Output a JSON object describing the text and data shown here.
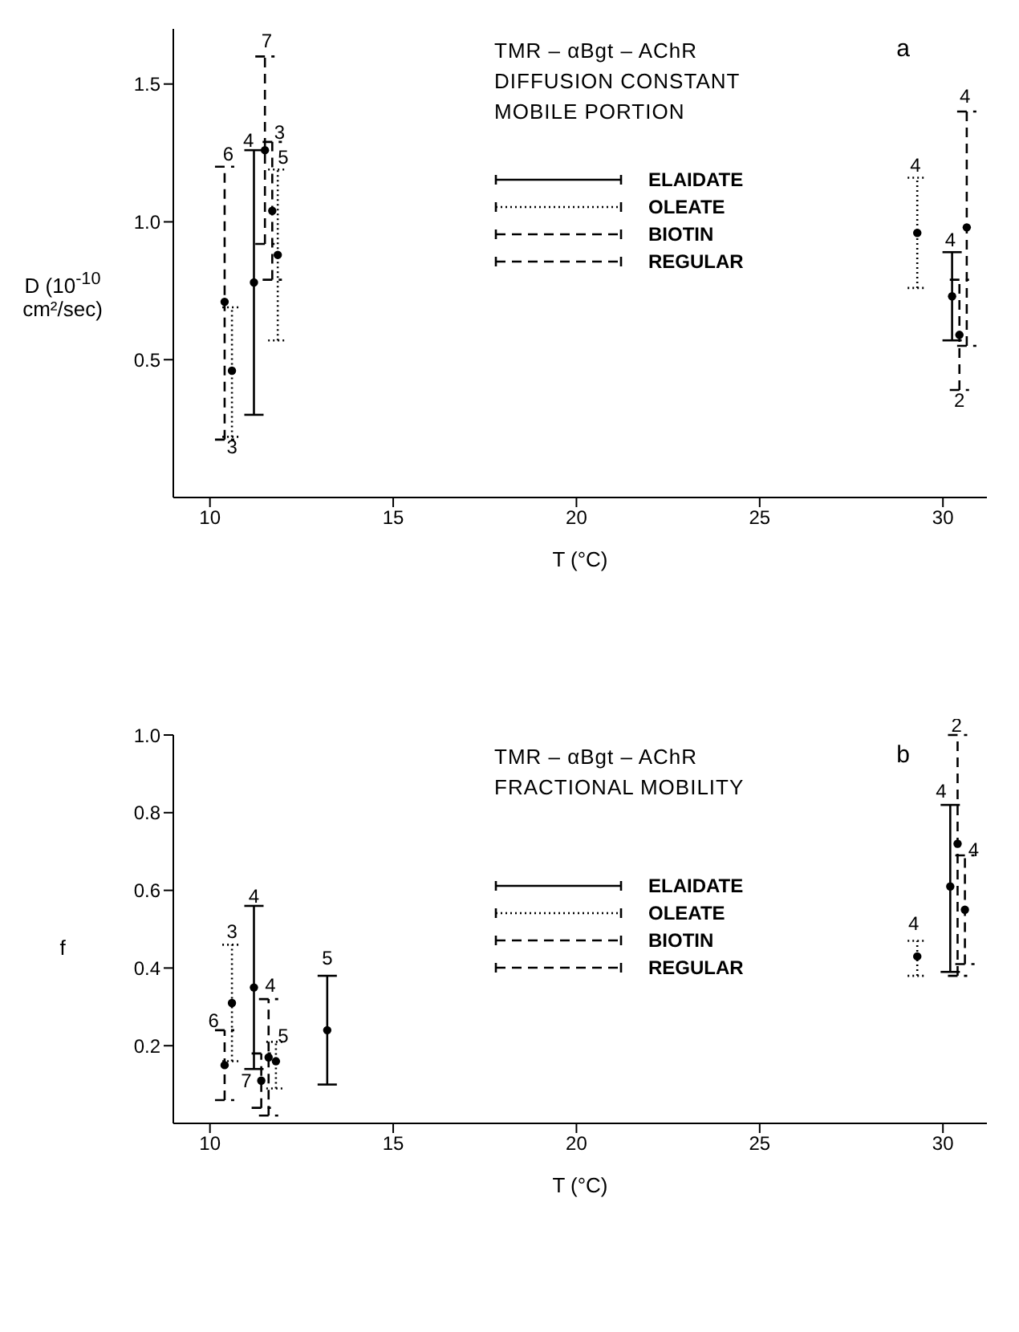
{
  "chart_data": [
    {
      "type": "scatter",
      "title": "TMR – αBgt – AChR",
      "subtitle": "DIFFUSION CONSTANT MOBILE PORTION",
      "xlabel": "T (°C)",
      "ylabel": "D (10$^{-10}$ cm²/sec)",
      "xlim": [
        9,
        31.2
      ],
      "xticks": [
        10,
        15,
        20,
        25,
        30
      ],
      "ylim": [
        0,
        1.7
      ],
      "yticks": [
        {
          "value": 0.5,
          "label": "0.5"
        },
        {
          "value": 1,
          "label": "1.0"
        },
        {
          "value": 1.5,
          "label": "1.5"
        }
      ],
      "grid": false,
      "legend": "top",
      "marker": "circle",
      "annotations": [
        "a",
        {
          "text": "6",
          "x": 10.5,
          "y": 1.21
        },
        {
          "text": "4",
          "x": 11.05,
          "y": 1.26
        },
        {
          "text": "7",
          "x": 11.55,
          "y": 1.62
        },
        {
          "text": "3",
          "x": 11.9,
          "y": 1.29
        },
        {
          "text": "5",
          "x": 12.0,
          "y": 1.2
        },
        {
          "text": "3",
          "x": 10.6,
          "y": 0.22
        },
        {
          "text": "4",
          "x": 29.25,
          "y": 1.17
        },
        {
          "text": "4",
          "x": 30.6,
          "y": 1.42
        },
        {
          "text": "4",
          "x": 30.2,
          "y": 0.9
        },
        {
          "text": "2",
          "x": 30.45,
          "y": 0.39
        }
      ],
      "series": [
        {
          "name": "ELAIDATE",
          "color": "#000000",
          "line_style": "solid",
          "x": [
            11.2,
            30.25
          ],
          "values": [
            0.78,
            0.73
          ],
          "errors": [
            [
              0.3,
              1.26
            ],
            [
              0.57,
              0.89
            ]
          ]
        },
        {
          "name": "OLEATE",
          "color": "#000000",
          "line_style": "dotted",
          "x": [
            10.6,
            11.85,
            29.3
          ],
          "values": [
            0.46,
            0.88,
            0.96
          ],
          "errors": [
            [
              0.22,
              0.69
            ],
            [
              0.57,
              1.19
            ],
            [
              0.76,
              1.16
            ]
          ]
        },
        {
          "name": "BIOTIN",
          "color": "#000000",
          "line_style": "dashed",
          "x": [
            10.4,
            11.7,
            30.65
          ],
          "values": [
            0.71,
            1.04,
            0.98
          ],
          "errors": [
            [
              0.21,
              1.2
            ],
            [
              0.79,
              1.29
            ],
            [
              0.55,
              1.4
            ]
          ]
        },
        {
          "name": "REGULAR",
          "color": "#000000",
          "line_style": "dashed",
          "x": [
            11.5,
            30.45
          ],
          "values": [
            1.26,
            0.59
          ],
          "errors": [
            [
              0.92,
              1.6
            ],
            [
              0.39,
              0.79
            ]
          ]
        }
      ]
    },
    {
      "type": "scatter",
      "title": "TMR – αBgt – AChR",
      "subtitle": "FRACTIONAL MOBILITY",
      "xlabel": "T (°C)",
      "ylabel": "f",
      "xlim": [
        9,
        31.2
      ],
      "xticks": [
        10,
        15,
        20,
        25,
        30
      ],
      "ylim": [
        0,
        1
      ],
      "yticks": [
        {
          "value": 0.2,
          "label": "0.2"
        },
        {
          "value": 0.4,
          "label": "0.4"
        },
        {
          "value": 0.6,
          "label": "0.6"
        },
        {
          "value": 0.8,
          "label": "0.8"
        },
        {
          "value": 1,
          "label": "1.0"
        }
      ],
      "grid": false,
      "legend": "top",
      "marker": "circle",
      "annotations": [
        "b",
        {
          "text": "6",
          "x": 10.1,
          "y": 0.24
        },
        {
          "text": "3",
          "x": 10.6,
          "y": 0.47
        },
        {
          "text": "4",
          "x": 11.2,
          "y": 0.56
        },
        {
          "text": "4",
          "x": 11.65,
          "y": 0.33
        },
        {
          "text": "5",
          "x": 12.0,
          "y": 0.2
        },
        {
          "text": "7",
          "x": 11.4,
          "y": 0.11
        },
        {
          "text": "5",
          "x": 13.2,
          "y": 0.4
        },
        {
          "text": "4",
          "x": 29.2,
          "y": 0.49
        },
        {
          "text": "4",
          "x": 29.95,
          "y": 0.83
        },
        {
          "text": "2",
          "x": 30.37,
          "y": 1.0
        },
        {
          "text": "4",
          "x": 30.84,
          "y": 0.68
        }
      ],
      "series": [
        {
          "name": "ELAIDATE",
          "color": "#000000",
          "line_style": "solid",
          "x": [
            11.2,
            13.2,
            30.2
          ],
          "values": [
            0.35,
            0.24,
            0.61
          ],
          "errors": [
            [
              0.14,
              0.56
            ],
            [
              0.1,
              0.38
            ],
            [
              0.39,
              0.82
            ]
          ]
        },
        {
          "name": "OLEATE",
          "color": "#000000",
          "line_style": "dotted",
          "x": [
            10.6,
            11.8,
            29.3
          ],
          "values": [
            0.31,
            0.16,
            0.43
          ],
          "errors": [
            [
              0.16,
              0.46
            ],
            [
              0.09,
              0.21
            ],
            [
              0.38,
              0.47
            ]
          ]
        },
        {
          "name": "BIOTIN",
          "color": "#000000",
          "line_style": "dashed",
          "x": [
            10.4,
            11.6,
            30.6
          ],
          "values": [
            0.15,
            0.17,
            0.55
          ],
          "errors": [
            [
              0.06,
              0.24
            ],
            [
              0.02,
              0.32
            ],
            [
              0.41,
              0.69
            ]
          ]
        },
        {
          "name": "REGULAR",
          "color": "#000000",
          "line_style": "dashed",
          "x": [
            11.4,
            30.4
          ],
          "values": [
            0.11,
            0.72
          ],
          "errors": [
            [
              0.04,
              0.18
            ],
            [
              0.38,
              1
            ]
          ]
        }
      ]
    }
  ]
}
